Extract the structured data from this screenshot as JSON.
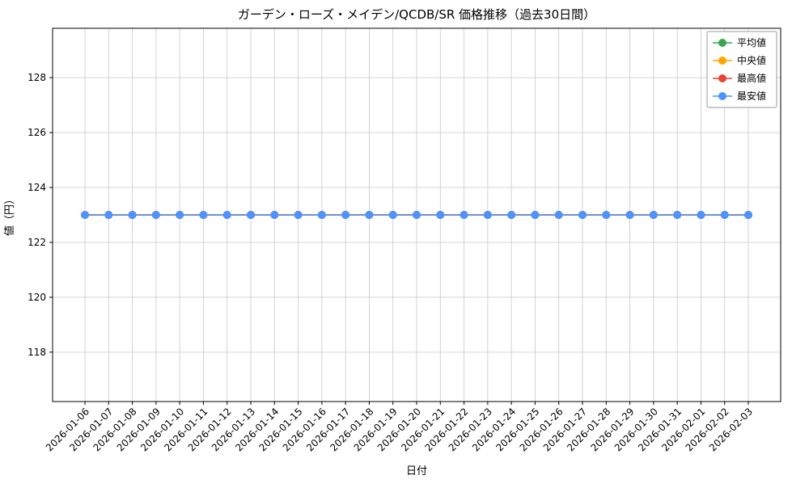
{
  "chart_data": {
    "type": "line",
    "title": "ガーデン・ローズ・メイデン/QCDB/SR 価格推移（過去30日間）",
    "xlabel": "日付",
    "ylabel": "値（円）",
    "x": [
      "2026-01-06",
      "2026-01-07",
      "2026-01-08",
      "2026-01-09",
      "2026-01-10",
      "2026-01-11",
      "2026-01-12",
      "2026-01-13",
      "2026-01-14",
      "2026-01-15",
      "2026-01-16",
      "2026-01-17",
      "2026-01-18",
      "2026-01-19",
      "2026-01-20",
      "2026-01-21",
      "2026-01-22",
      "2026-01-23",
      "2026-01-24",
      "2026-01-25",
      "2026-01-26",
      "2026-01-27",
      "2026-01-28",
      "2026-01-29",
      "2026-01-30",
      "2026-01-31",
      "2026-02-01",
      "2026-02-02",
      "2026-02-03"
    ],
    "series": [
      {
        "name": "平均値",
        "color": "#34a853",
        "values": [
          123,
          123,
          123,
          123,
          123,
          123,
          123,
          123,
          123,
          123,
          123,
          123,
          123,
          123,
          123,
          123,
          123,
          123,
          123,
          123,
          123,
          123,
          123,
          123,
          123,
          123,
          123,
          123,
          123
        ]
      },
      {
        "name": "中央値",
        "color": "#ffa500",
        "values": [
          123,
          123,
          123,
          123,
          123,
          123,
          123,
          123,
          123,
          123,
          123,
          123,
          123,
          123,
          123,
          123,
          123,
          123,
          123,
          123,
          123,
          123,
          123,
          123,
          123,
          123,
          123,
          123,
          123
        ]
      },
      {
        "name": "最高値",
        "color": "#ea4335",
        "values": [
          123,
          123,
          123,
          123,
          123,
          123,
          123,
          123,
          123,
          123,
          123,
          123,
          123,
          123,
          123,
          123,
          123,
          123,
          123,
          123,
          123,
          123,
          123,
          123,
          123,
          123,
          123,
          123,
          123
        ]
      },
      {
        "name": "最安値",
        "color": "#4d94ff",
        "values": [
          123,
          123,
          123,
          123,
          123,
          123,
          123,
          123,
          123,
          123,
          123,
          123,
          123,
          123,
          123,
          123,
          123,
          123,
          123,
          123,
          123,
          123,
          123,
          123,
          123,
          123,
          123,
          123,
          123
        ]
      }
    ],
    "ylim": [
      116.2,
      129.8
    ],
    "yticks": [
      118,
      120,
      122,
      124,
      126,
      128
    ],
    "grid": true,
    "legend_position": "upper right",
    "grid_color": "#c8c8c8",
    "axis_color": "#000000",
    "background_color": "#ffffff"
  }
}
